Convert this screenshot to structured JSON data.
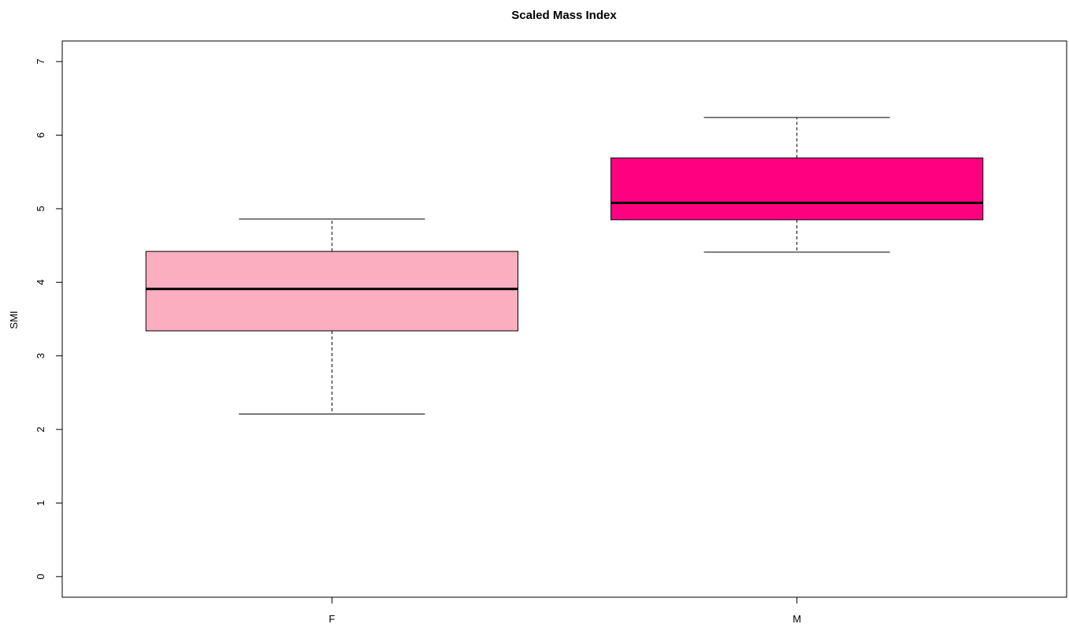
{
  "chart_data": {
    "type": "boxplot",
    "title": "Scaled Mass Index",
    "xlabel": "",
    "ylabel": "SMI",
    "ylim": [
      -0.28,
      7.28
    ],
    "yticks": [
      "0",
      "1",
      "2",
      "3",
      "4",
      "5",
      "6",
      "7"
    ],
    "ytick_values": [
      0,
      1,
      2,
      3,
      4,
      5,
      6,
      7
    ],
    "grid": false,
    "categories": [
      "F",
      "M"
    ],
    "boxes": [
      {
        "category": "F",
        "whisker_low": 2.21,
        "q1": 3.34,
        "median": 3.91,
        "q3": 4.42,
        "whisker_high": 4.86,
        "color": "#FBAEC0"
      },
      {
        "category": "M",
        "whisker_low": 4.41,
        "q1": 4.85,
        "median": 5.08,
        "q3": 5.69,
        "whisker_high": 6.24,
        "color": "#FF0080"
      }
    ]
  }
}
